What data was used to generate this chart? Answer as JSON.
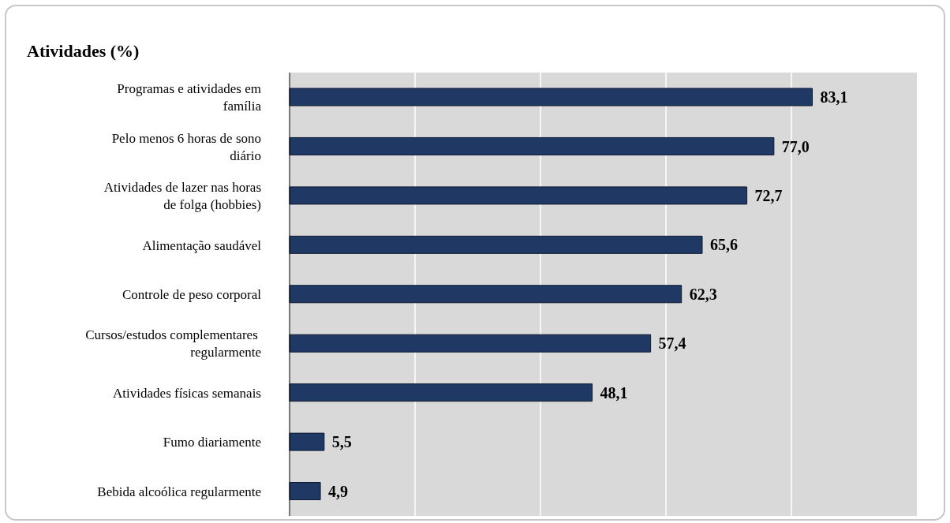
{
  "chart_data": {
    "type": "bar",
    "orientation": "horizontal",
    "title": "Atividades (%)",
    "categories": [
      "Programas e atividades  em família",
      "Pelo menos 6 horas de sono diário",
      "Atividades de lazer nas horas de folga (hobbies)",
      "Alimentação  saudável",
      "Controle de peso corporal",
      "Cursos/estudos complementares  regularmente",
      "Atividades  físicas semanais",
      "Fumo diariamente",
      "Bebida alcoólica  regularmente"
    ],
    "values": [
      83.1,
      77.0,
      72.7,
      65.6,
      62.3,
      57.4,
      48.1,
      5.5,
      4.9
    ],
    "color": "#1f3864",
    "value_labels": [
      "83,1",
      "77,0",
      "72,7",
      "65,6",
      "62,3",
      "57,4",
      "48,1",
      "5,5",
      "4,9"
    ],
    "grid": "x",
    "legend": false
  }
}
